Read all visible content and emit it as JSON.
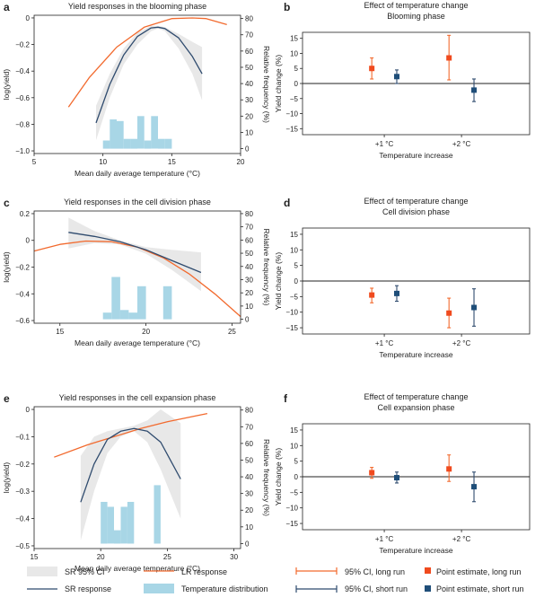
{
  "colors": {
    "lr": "#f26a2e",
    "sr": "#2f4b6e",
    "ci": "#e8e8e8",
    "hist": "#a8d6e6",
    "long": "#f04a1e",
    "short": "#1f4e79",
    "axis": "#222222"
  },
  "chart_data": [
    {
      "id": "a",
      "type": "line",
      "panel_label": "a",
      "title": "Yield responses in the blooming phase",
      "xlabel": "Mean daily average temperature (°C)",
      "ylabel": "log(yield)",
      "y2label": "Relative frequency (%)",
      "xlim": [
        5,
        20
      ],
      "ylim": [
        -1.02,
        0.02
      ],
      "y2lim": [
        -3,
        82
      ],
      "xticks": [
        5,
        10,
        15,
        20
      ],
      "yticks": [
        0,
        -0.2,
        -0.4,
        -0.6,
        -0.8,
        -1.0
      ],
      "ytick_labels": [
        "0",
        "−0.2",
        "−0.4",
        "−0.6",
        "−0.8",
        "−1.0"
      ],
      "y2ticks": [
        0,
        10,
        20,
        30,
        40,
        50,
        60,
        70,
        80
      ],
      "lr": {
        "x": [
          7.5,
          9,
          11,
          13,
          15,
          16.5,
          17.5,
          19
        ],
        "y": [
          -0.67,
          -0.45,
          -0.22,
          -0.07,
          -0.005,
          0.0,
          -0.005,
          -0.05
        ]
      },
      "sr": {
        "x": [
          9.5,
          10.5,
          11.5,
          12.5,
          13.5,
          14,
          14.5,
          15.5,
          16.5,
          17.2
        ],
        "y": [
          -0.79,
          -0.5,
          -0.28,
          -0.14,
          -0.075,
          -0.07,
          -0.08,
          -0.15,
          -0.29,
          -0.42
        ]
      },
      "ci_upper": [
        -0.66,
        -0.42,
        -0.23,
        -0.11,
        -0.06,
        -0.06,
        -0.07,
        -0.12,
        -0.18,
        -0.22
      ],
      "ci_lower": [
        -0.92,
        -0.6,
        -0.35,
        -0.2,
        -0.1,
        -0.08,
        -0.1,
        -0.23,
        -0.42,
        -0.62
      ],
      "hist": {
        "edges": [
          10,
          10.5,
          11,
          11.5,
          12,
          12.5,
          13,
          13.5,
          14,
          14.5,
          15
        ],
        "values": [
          5,
          18,
          17,
          6,
          6,
          20,
          5,
          20,
          6,
          6
        ]
      }
    },
    {
      "id": "c",
      "type": "line",
      "panel_label": "c",
      "title": "Yield responses in the cell division phase",
      "xlabel": "Mean daily average temperature (°C)",
      "ylabel": "log(yield)",
      "y2label": "Relative frequency (%)",
      "xlim": [
        13.5,
        25.5
      ],
      "ylim": [
        -0.62,
        0.22
      ],
      "y2lim": [
        -3,
        82
      ],
      "xticks": [
        15,
        20,
        25
      ],
      "yticks": [
        0.2,
        0,
        -0.2,
        -0.4,
        -0.6
      ],
      "ytick_labels": [
        "0.2",
        "0",
        "−0.2",
        "−0.4",
        "−0.6"
      ],
      "y2ticks": [
        0,
        10,
        20,
        30,
        40,
        50,
        60,
        70,
        80
      ],
      "lr": {
        "x": [
          13.5,
          15,
          16.5,
          18,
          19.5,
          21,
          22.5,
          24,
          25.5
        ],
        "y": [
          -0.08,
          -0.03,
          -0.005,
          -0.01,
          -0.05,
          -0.13,
          -0.25,
          -0.4,
          -0.57
        ]
      },
      "sr": {
        "x": [
          15.5,
          17,
          18.5,
          20,
          21.5,
          23.2
        ],
        "y": [
          0.06,
          0.03,
          -0.01,
          -0.07,
          -0.15,
          -0.24
        ]
      },
      "ci_upper": [
        0.17,
        0.07,
        0.0,
        -0.05,
        -0.07,
        -0.09
      ],
      "ci_lower": [
        -0.06,
        -0.02,
        -0.03,
        -0.1,
        -0.22,
        -0.38
      ],
      "hist": {
        "edges": [
          17.5,
          18,
          18.5,
          19,
          19.5,
          20,
          21,
          21.5
        ],
        "values": [
          5,
          32,
          7,
          5,
          25,
          0,
          25
        ]
      }
    },
    {
      "id": "e",
      "type": "line",
      "panel_label": "e",
      "title": "Yield responses in the cell expansion phase",
      "xlabel": "Mean daily average temperature (°C)",
      "ylabel": "log(yield)",
      "y2label": "Relative frequency (%)",
      "xlim": [
        15,
        30.5
      ],
      "ylim": [
        -0.51,
        0.01
      ],
      "y2lim": [
        -3,
        82
      ],
      "xticks": [
        15,
        20,
        25,
        30
      ],
      "yticks": [
        0,
        -0.1,
        -0.2,
        -0.3,
        -0.4,
        -0.5
      ],
      "ytick_labels": [
        "0",
        "−0.1",
        "−0.2",
        "−0.3",
        "−0.4",
        "−0.5"
      ],
      "y2ticks": [
        0,
        10,
        20,
        30,
        40,
        50,
        60,
        70,
        80
      ],
      "lr": {
        "x": [
          16.5,
          19,
          21,
          23,
          25,
          27,
          28
        ],
        "y": [
          -0.175,
          -0.13,
          -0.1,
          -0.07,
          -0.045,
          -0.025,
          -0.015
        ]
      },
      "sr": {
        "x": [
          18.5,
          19.5,
          20.5,
          21.5,
          22.5,
          23.5,
          24.5,
          26
        ],
        "y": [
          -0.34,
          -0.2,
          -0.11,
          -0.08,
          -0.07,
          -0.08,
          -0.12,
          -0.255
        ]
      },
      "ci_upper": [
        -0.17,
        -0.1,
        -0.08,
        -0.07,
        -0.06,
        -0.04,
        0.0,
        -0.05
      ],
      "ci_lower": [
        -0.48,
        -0.3,
        -0.16,
        -0.1,
        -0.08,
        -0.12,
        -0.22,
        -0.4
      ],
      "hist": {
        "edges": [
          20,
          20.5,
          21,
          21.5,
          22,
          22.5,
          23,
          24,
          24.5
        ],
        "values": [
          25,
          22,
          8,
          22,
          25,
          0,
          0,
          35
        ]
      }
    },
    {
      "id": "b",
      "type": "scatter",
      "panel_label": "b",
      "title": "Effect of temperature change",
      "subtitle": "Blooming phase",
      "xlabel": "Temperature increase",
      "ylabel": "Yield change (%)",
      "ylim": [
        -17,
        17
      ],
      "yticks": [
        15,
        10,
        5,
        0,
        -5,
        -10,
        -15
      ],
      "ytick_labels": [
        "15",
        "10",
        "5",
        "0",
        "−5",
        "−10",
        "−15"
      ],
      "categories": [
        "+1 °C",
        "+2 °C"
      ],
      "long_run": {
        "estimate": [
          5,
          8.5
        ],
        "ci_low": [
          1.5,
          1.2
        ],
        "ci_high": [
          8.5,
          16
        ]
      },
      "short_run": {
        "estimate": [
          2.3,
          -2.2
        ],
        "ci_low": [
          0,
          -6
        ],
        "ci_high": [
          4.5,
          1.5
        ]
      }
    },
    {
      "id": "d",
      "type": "scatter",
      "panel_label": "d",
      "title": "Effect of temperature change",
      "subtitle": "Cell division phase",
      "xlabel": "Temperature increase",
      "ylabel": "Yield change (%)",
      "ylim": [
        -17,
        17
      ],
      "yticks": [
        15,
        10,
        5,
        0,
        -5,
        -10,
        -15
      ],
      "ytick_labels": [
        "15",
        "10",
        "5",
        "0",
        "−5",
        "−10",
        "−15"
      ],
      "categories": [
        "+1 °C",
        "+2 °C"
      ],
      "long_run": {
        "estimate": [
          -4.5,
          -10.3
        ],
        "ci_low": [
          -7,
          -15
        ],
        "ci_high": [
          -2.3,
          -5.5
        ]
      },
      "short_run": {
        "estimate": [
          -4,
          -8.5
        ],
        "ci_low": [
          -6.5,
          -14.5
        ],
        "ci_high": [
          -1.5,
          -2.5
        ]
      }
    },
    {
      "id": "f",
      "type": "scatter",
      "panel_label": "f",
      "title": "Effect of temperature change",
      "subtitle": "Cell expansion phase",
      "xlabel": "Temperature increase",
      "ylabel": "Yield change (%)",
      "ylim": [
        -17,
        17
      ],
      "yticks": [
        15,
        10,
        5,
        0,
        -5,
        -10,
        -15
      ],
      "ytick_labels": [
        "15",
        "10",
        "5",
        "0",
        "−5",
        "−10",
        "−15"
      ],
      "categories": [
        "+1 °C",
        "+2 °C"
      ],
      "long_run": {
        "estimate": [
          1.3,
          2.5
        ],
        "ci_low": [
          -0.5,
          -1.5
        ],
        "ci_high": [
          3,
          7
        ]
      },
      "short_run": {
        "estimate": [
          -0.3,
          -3.2
        ],
        "ci_low": [
          -2,
          -8
        ],
        "ci_high": [
          1.5,
          1.5
        ]
      }
    }
  ],
  "legend": {
    "left": {
      "sr_ci": "SR 95% CI",
      "sr_response": "SR response",
      "lr_response": "LR response",
      "temp_dist": "Temperature distribution"
    },
    "right": {
      "ci_long": "95% CI, long run",
      "ci_short": "95% CI, short run",
      "pe_long": "Point estimate, long run",
      "pe_short": "Point estimate, short run"
    }
  }
}
